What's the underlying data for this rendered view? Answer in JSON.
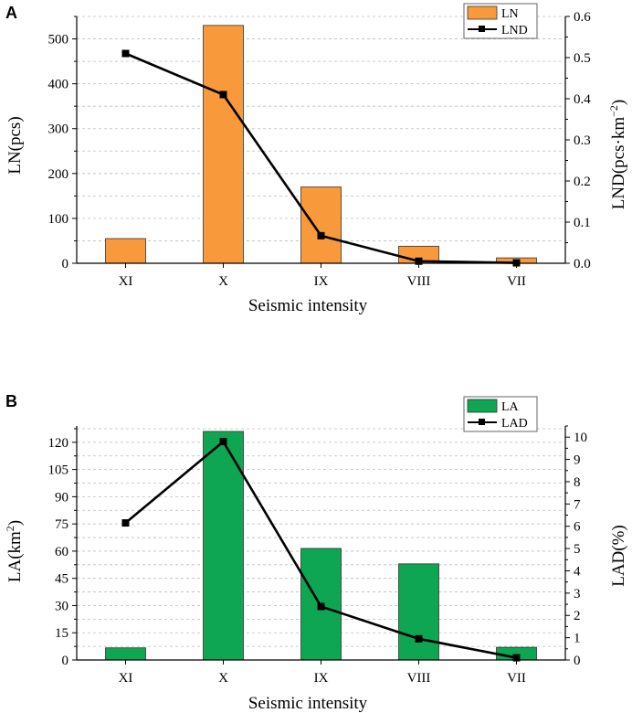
{
  "chart_data": [
    {
      "panel": "A",
      "type": "bar+line",
      "categories": [
        "XI",
        "X",
        "IX",
        "VIII",
        "VII"
      ],
      "xlabel": "Seismic intensity",
      "bar_series": {
        "name": "LN",
        "values": [
          55,
          530,
          170,
          38,
          12
        ],
        "color": "#F89A3C"
      },
      "line_series": {
        "name": "LND",
        "values": [
          0.51,
          0.41,
          0.067,
          0.005,
          0.001
        ],
        "color": "#000000"
      },
      "y_left": {
        "label": "LN(pcs)",
        "lim": [
          0,
          550
        ],
        "ticks": [
          "0",
          "100",
          "200",
          "300",
          "400",
          "500"
        ],
        "tick_values": [
          0,
          100,
          200,
          300,
          400,
          500
        ]
      },
      "y_right": {
        "label_main": "LND(pcs·km",
        "label_sup": "−2",
        "label_end": ")",
        "lim": [
          0,
          0.6
        ],
        "ticks": [
          "0.0",
          "0.1",
          "0.2",
          "0.3",
          "0.4",
          "0.5",
          "0.6"
        ],
        "tick_values": [
          0,
          0.1,
          0.2,
          0.3,
          0.4,
          0.5,
          0.6
        ]
      },
      "grid": true
    },
    {
      "panel": "B",
      "type": "bar+line",
      "categories": [
        "XI",
        "X",
        "IX",
        "VIII",
        "VII"
      ],
      "xlabel": "Seismic intensity",
      "bar_series": {
        "name": "LA",
        "values": [
          6.7,
          126,
          61.5,
          53,
          7
        ],
        "color": "#0FA653"
      },
      "line_series": {
        "name": "LAD",
        "values": [
          6.15,
          9.8,
          2.4,
          0.95,
          0.1
        ],
        "color": "#000000"
      },
      "y_left": {
        "label_main": "LA(km",
        "label_sup": "2",
        "label_end": ")",
        "lim": [
          0,
          129
        ],
        "ticks": [
          "0",
          "15",
          "30",
          "45",
          "60",
          "75",
          "90",
          "105",
          "120"
        ],
        "tick_values": [
          0,
          15,
          30,
          45,
          60,
          75,
          90,
          105,
          120
        ]
      },
      "y_right": {
        "label": "LAD(%)",
        "lim": [
          0,
          10.5
        ],
        "ticks": [
          "0",
          "1",
          "2",
          "3",
          "4",
          "5",
          "6",
          "7",
          "8",
          "9",
          "10"
        ],
        "tick_values": [
          0,
          1,
          2,
          3,
          4,
          5,
          6,
          7,
          8,
          9,
          10
        ]
      },
      "grid": true
    }
  ]
}
